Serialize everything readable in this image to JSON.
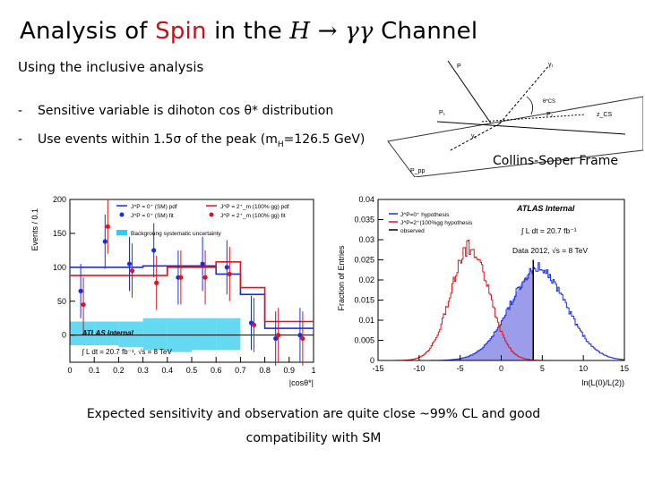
{
  "slide": {
    "title_prefix": "Analysis of ",
    "title_highlight": "Spin",
    "title_mid": " in the ",
    "title_math": "H → γγ",
    "title_suffix": " Channel",
    "subtitle": "Using the inclusive analysis",
    "bullets": [
      {
        "dash": "-",
        "text": "Sensitive variable is dihoton cos θ* distribution"
      },
      {
        "dash": "-",
        "text_pre": "Use events within 1.5σ of the peak (m",
        "text_sub": "H",
        "text_post": "=126.5 GeV)"
      }
    ],
    "diagram_caption": "Collins-Soper Frame",
    "footer_line1": "Expected sensitivity and observation are quite close ~99% CL and good",
    "footer_line2": "compatibility with SM"
  },
  "diagram": {
    "labels": [
      "P",
      "γ₁",
      "θ*CS",
      "z_CS",
      "P₁",
      "P₂",
      "γ₂",
      "P_pp"
    ]
  },
  "colors": {
    "title_highlight": "#c0141a",
    "blue": "#1a2ee0",
    "red": "#e0141a",
    "band": "#33ccee",
    "fill_blue": "#8a8ce6"
  },
  "chart_data": [
    {
      "type": "line",
      "title": "",
      "xlabel": "|cosθ*|",
      "ylabel": "Events / 0.1",
      "xlim": [
        0,
        1
      ],
      "ylim": [
        -40,
        200
      ],
      "x_ticks": [
        "0",
        "0.1",
        "0.2",
        "0.3",
        "0.4",
        "0.5",
        "0.6",
        "0.7",
        "0.8",
        "0.9",
        "1"
      ],
      "y_ticks": [
        "0",
        "50",
        "100",
        "150",
        "200"
      ],
      "legend": [
        "J^P = 0⁺ (SM) pdf",
        "J^P = 2⁺_m (100% gg) pdf",
        "J^P = 0⁺ (SM) fit",
        "J^P = 2⁺_m (100% gg) fit",
        "Backgroung systematic uncertainty"
      ],
      "legend_placement": "top",
      "annotations": [
        "ATLAS Internal",
        "∫ L dt = 20.7 fb⁻¹, √s = 8 TeV"
      ],
      "x": [
        0.05,
        0.15,
        0.25,
        0.35,
        0.45,
        0.55,
        0.65,
        0.75,
        0.85,
        0.95
      ],
      "series": [
        {
          "name": "J^P = 0⁺ (SM) pdf",
          "values": [
            100,
            100,
            100,
            102,
            102,
            102,
            90,
            60,
            10,
            10
          ]
        },
        {
          "name": "J^P = 2⁺_m (100% gg) pdf",
          "values": [
            88,
            88,
            88,
            88,
            100,
            100,
            108,
            70,
            20,
            20
          ]
        },
        {
          "name": "J^P = 0⁺ (SM) fit",
          "values": [
            65,
            138,
            105,
            125,
            85,
            105,
            100,
            18,
            -5,
            0
          ],
          "errors": [
            40,
            40,
            40,
            40,
            40,
            40,
            40,
            40,
            40,
            40
          ]
        },
        {
          "name": "J^P = 2⁺_m (100% gg) fit",
          "values": [
            45,
            160,
            95,
            77,
            85,
            85,
            90,
            15,
            0,
            -5
          ],
          "errors": [
            40,
            40,
            40,
            40,
            40,
            40,
            40,
            40,
            40,
            40
          ]
        },
        {
          "name": "Backgroung systematic uncertainty",
          "values": [
            -15,
            -15,
            -18,
            -22,
            -25,
            -22,
            -22,
            0,
            0,
            0
          ],
          "upper": [
            20,
            20,
            20,
            25,
            25,
            25,
            25,
            0,
            0,
            0
          ]
        }
      ]
    },
    {
      "type": "area",
      "title": "",
      "xlabel": "ln(L(0)/L(2))",
      "ylabel": "Fraction of Entries",
      "xlim": [
        -15,
        15
      ],
      "ylim": [
        0,
        0.04
      ],
      "x_ticks": [
        "-15",
        "-10",
        "-5",
        "0",
        "5",
        "10",
        "15"
      ],
      "y_ticks": [
        "0",
        "0.005",
        "0.01",
        "0.015",
        "0.02",
        "0.025",
        "0.03",
        "0.035",
        "0.04"
      ],
      "legend": [
        "J^P=0⁺ hypothesis",
        "J^P=2⁺(100%gg hypothesis",
        "observed"
      ],
      "legend_placement": "top-left",
      "annotations": [
        "ATLAS Internal",
        "∫ L dt = 20.7 fb⁻¹",
        "Data 2012, √s = 8 TeV"
      ],
      "observed": 3.9,
      "series": [
        {
          "name": "J^P=0⁺ hypothesis",
          "mean": 4.5,
          "sigma": 3.4,
          "peak": 0.023
        },
        {
          "name": "J^P=2⁺(100%gg hypothesis",
          "mean": -3.8,
          "sigma": 2.3,
          "peak": 0.032
        }
      ]
    }
  ]
}
